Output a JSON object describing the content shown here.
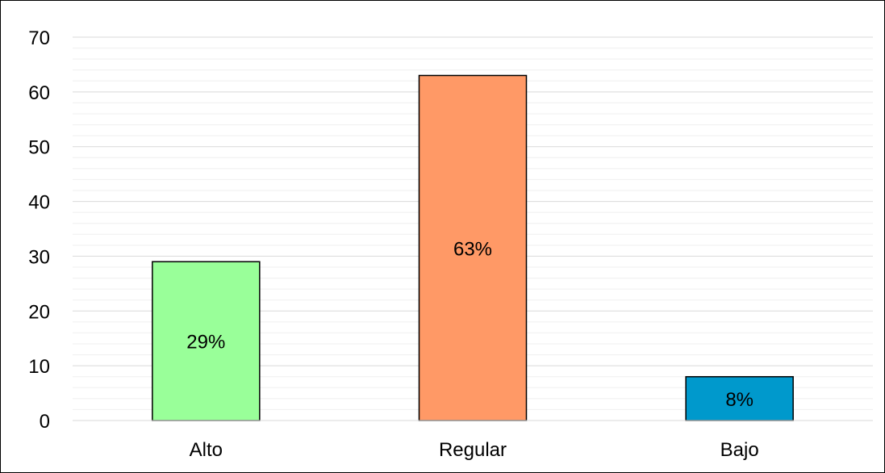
{
  "chart_data": {
    "type": "bar",
    "categories": [
      "Alto",
      "Regular",
      "Bajo"
    ],
    "values": [
      29,
      63,
      8
    ],
    "data_labels": [
      "29%",
      "63%",
      "8%"
    ],
    "colors": [
      "#99ff99",
      "#ff9966",
      "#0099cc"
    ],
    "title": "",
    "xlabel": "",
    "ylabel": "",
    "ylim": [
      0,
      70
    ],
    "major_tick_step": 10,
    "minor_tick_step": 2,
    "y_ticks": [
      "0",
      "10",
      "20",
      "30",
      "40",
      "50",
      "60",
      "70"
    ],
    "grid": true,
    "legend": "none"
  }
}
